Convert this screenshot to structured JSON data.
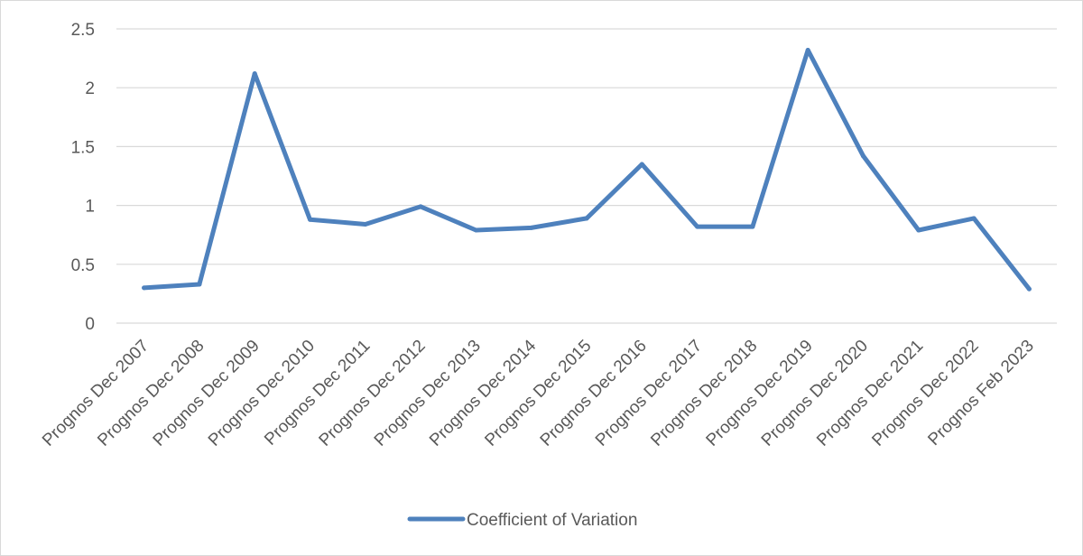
{
  "chart_data": {
    "type": "line",
    "categories": [
      "Prognos Dec 2007",
      "Prognos Dec 2008",
      "Prognos Dec 2009",
      "Prognos Dec 2010",
      "Prognos Dec 2011",
      "Prognos Dec 2012",
      "Prognos Dec 2013",
      "Prognos Dec 2014",
      "Prognos Dec 2015",
      "Prognos Dec 2016",
      "Prognos Dec 2017",
      "Prognos Dec 2018",
      "Prognos Dec 2019",
      "Prognos Dec 2020",
      "Prognos Dec 2021",
      "Prognos Dec 2022",
      "Prognos Feb 2023"
    ],
    "series": [
      {
        "name": "Coefficient of Variation",
        "values": [
          0.3,
          0.33,
          2.12,
          0.88,
          0.84,
          0.99,
          0.79,
          0.81,
          0.89,
          1.35,
          0.82,
          0.82,
          2.32,
          1.42,
          0.79,
          0.89,
          0.29
        ],
        "color": "#4e81bd"
      }
    ],
    "y_ticks": [
      "0",
      "0.5",
      "1",
      "1.5",
      "2",
      "2.5"
    ],
    "ylim": [
      0,
      2.5
    ],
    "title": "",
    "xlabel": "",
    "ylabel": "",
    "grid": true,
    "legend_position": "bottom",
    "gridline_color": "#d9d9d9",
    "text_color": "#595959"
  }
}
